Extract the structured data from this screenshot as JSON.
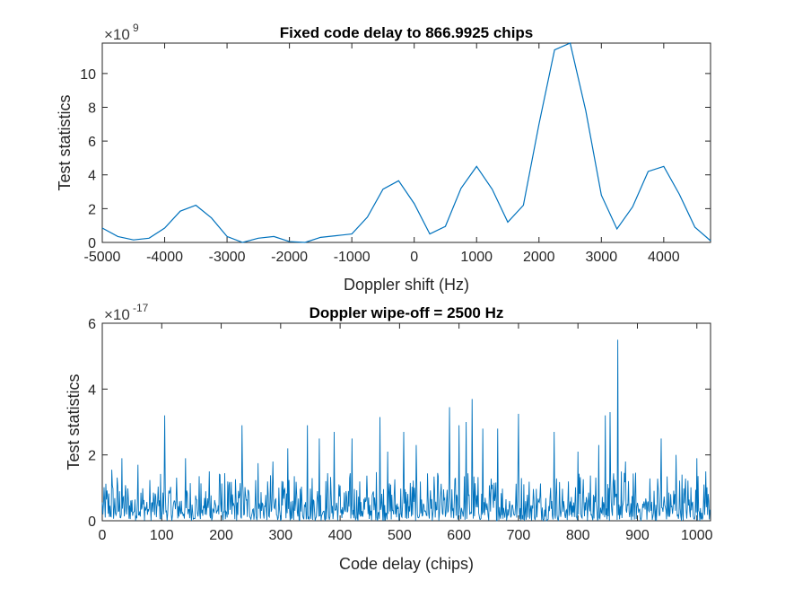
{
  "chart_data": [
    {
      "type": "line",
      "title": "Fixed code delay to 866.9925 chips",
      "xlabel": "Doppler shift (Hz)",
      "ylabel": "Test statistics",
      "y_multiplier_base": "×10",
      "y_multiplier_exponent": "9",
      "xlim": [
        -5000,
        4750
      ],
      "ylim": [
        0,
        11.8
      ],
      "xticks": [
        "-5000",
        "-4000",
        "-3000",
        "-2000",
        "-1000",
        "0",
        "1000",
        "2000",
        "3000",
        "4000"
      ],
      "xtick_values": [
        -5000,
        -4000,
        -3000,
        -2000,
        -1000,
        0,
        1000,
        2000,
        3000,
        4000
      ],
      "yticks": [
        "0",
        "2",
        "4",
        "6",
        "8",
        "10"
      ],
      "ytick_values": [
        0,
        2,
        4,
        6,
        8,
        10
      ],
      "grid": false,
      "color": "#0072bd",
      "x": [
        -5000,
        -4750,
        -4500,
        -4250,
        -4000,
        -3750,
        -3500,
        -3250,
        -3000,
        -2750,
        -2500,
        -2250,
        -2000,
        -1750,
        -1500,
        -1250,
        -1000,
        -750,
        -500,
        -250,
        0,
        250,
        500,
        750,
        1000,
        1250,
        1500,
        1750,
        2000,
        2250,
        2500,
        2750,
        3000,
        3250,
        3500,
        3750,
        4000,
        4250,
        4500,
        4750
      ],
      "y": [
        0.85,
        0.35,
        0.15,
        0.25,
        0.85,
        1.85,
        2.2,
        1.45,
        0.35,
        0.0,
        0.25,
        0.35,
        0.05,
        0.0,
        0.3,
        0.4,
        0.5,
        1.5,
        3.15,
        3.65,
        2.3,
        0.5,
        0.95,
        3.2,
        4.5,
        3.15,
        1.2,
        2.2,
        7.0,
        11.4,
        11.8,
        7.8,
        2.8,
        0.8,
        2.1,
        4.2,
        4.5,
        2.85,
        0.9,
        0.1
      ]
    },
    {
      "type": "line",
      "title": "Doppler wipe-off = 2500 Hz",
      "xlabel": "Code delay (chips)",
      "ylabel": "Test statistics",
      "y_multiplier_base": "×10",
      "y_multiplier_exponent": "-17",
      "xlim": [
        0,
        1023
      ],
      "ylim": [
        0,
        6
      ],
      "xticks": [
        "0",
        "100",
        "200",
        "300",
        "400",
        "500",
        "600",
        "700",
        "800",
        "900",
        "1000"
      ],
      "xtick_values": [
        0,
        100,
        200,
        300,
        400,
        500,
        600,
        700,
        800,
        900,
        1000
      ],
      "yticks": [
        "0",
        "2",
        "4",
        "6"
      ],
      "ytick_values": [
        0,
        2,
        4,
        6
      ],
      "grid": false,
      "color": "#0072bd",
      "n_points": 1023,
      "noise_level": 0.7,
      "peaks": [
        {
          "x": 16,
          "y": 1.55
        },
        {
          "x": 33,
          "y": 1.9
        },
        {
          "x": 60,
          "y": 1.7
        },
        {
          "x": 105,
          "y": 3.2
        },
        {
          "x": 140,
          "y": 1.9
        },
        {
          "x": 180,
          "y": 1.5
        },
        {
          "x": 235,
          "y": 2.9
        },
        {
          "x": 262,
          "y": 1.75
        },
        {
          "x": 287,
          "y": 1.8
        },
        {
          "x": 312,
          "y": 2.2
        },
        {
          "x": 345,
          "y": 2.9
        },
        {
          "x": 365,
          "y": 2.5
        },
        {
          "x": 390,
          "y": 2.7
        },
        {
          "x": 420,
          "y": 2.5
        },
        {
          "x": 467,
          "y": 3.15
        },
        {
          "x": 480,
          "y": 2.1
        },
        {
          "x": 507,
          "y": 2.7
        },
        {
          "x": 528,
          "y": 2.3
        },
        {
          "x": 584,
          "y": 3.45
        },
        {
          "x": 600,
          "y": 2.9
        },
        {
          "x": 612,
          "y": 3.0
        },
        {
          "x": 622,
          "y": 3.7
        },
        {
          "x": 640,
          "y": 2.8
        },
        {
          "x": 665,
          "y": 2.8
        },
        {
          "x": 700,
          "y": 3.25
        },
        {
          "x": 760,
          "y": 2.7
        },
        {
          "x": 800,
          "y": 2.1
        },
        {
          "x": 835,
          "y": 2.3
        },
        {
          "x": 846,
          "y": 3.2
        },
        {
          "x": 854,
          "y": 3.3
        },
        {
          "x": 867,
          "y": 5.5
        },
        {
          "x": 880,
          "y": 1.8
        },
        {
          "x": 940,
          "y": 2.5
        },
        {
          "x": 965,
          "y": 2.0
        },
        {
          "x": 1000,
          "y": 1.9
        },
        {
          "x": 1015,
          "y": 1.5
        }
      ]
    }
  ]
}
